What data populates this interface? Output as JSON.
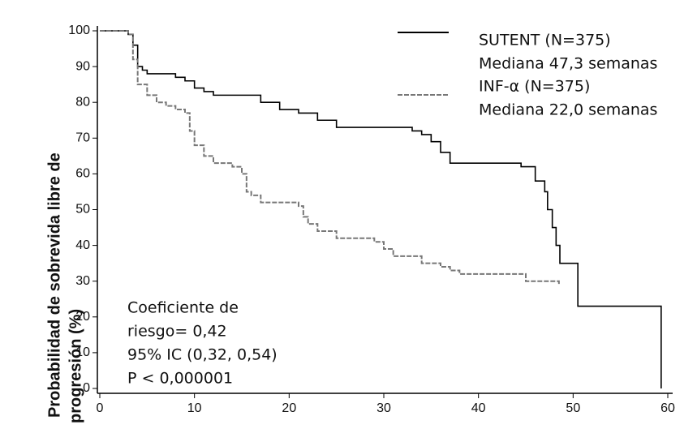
{
  "chart_data": {
    "type": "line",
    "step": "post",
    "ylabel": [
      "Probabilidad de sobrevida libre de",
      "progresión (%)"
    ],
    "series": [
      {
        "name": "SUTENT (N=375)",
        "median_label": "Mediana 47,3 semanas",
        "color": "#000000",
        "dash": false,
        "x": [
          0,
          2,
          3,
          3.5,
          4,
          4.5,
          5,
          8,
          9,
          10,
          11,
          12,
          17,
          19,
          21,
          23,
          25,
          32,
          33,
          34,
          35,
          36,
          37,
          44.5,
          46,
          47,
          47.3,
          47.8,
          48.2,
          48.6,
          50.5,
          59.3
        ],
        "values": [
          100,
          100,
          99,
          96,
          90,
          89,
          88,
          87,
          86,
          84,
          83,
          82,
          80,
          78,
          77,
          75,
          73,
          73,
          72,
          71,
          69,
          66,
          63,
          62,
          58,
          55,
          50,
          45,
          40,
          35,
          23,
          0
        ]
      },
      {
        "name": "INF-α (N=375)",
        "median_label": "Mediana 22,0 semanas",
        "color": "#777777",
        "dash": true,
        "x": [
          0,
          3,
          3.5,
          4,
          5,
          6,
          7,
          8,
          9,
          9.5,
          10,
          11,
          12,
          14,
          15,
          15.5,
          16,
          17,
          21,
          21.5,
          22,
          23,
          25,
          29,
          30,
          31,
          34,
          36,
          37,
          38,
          45,
          48.5
        ],
        "values": [
          100,
          99,
          92,
          85,
          82,
          80,
          79,
          78,
          77,
          72,
          68,
          65,
          63,
          62,
          60,
          55,
          54,
          52,
          51,
          48,
          46,
          44,
          42,
          41,
          39,
          37,
          35,
          34,
          33,
          32,
          30,
          29
        ]
      }
    ],
    "annotation": [
      "Coeficiente de",
      "riesgo= 0,42",
      "95% IC (0,32, 0,54)",
      "P < 0,000001"
    ],
    "xlim": [
      0,
      60
    ],
    "xticks": [
      0,
      10,
      20,
      30,
      40,
      50,
      60
    ],
    "ylim": [
      0,
      100
    ],
    "yticks": [
      0,
      10,
      20,
      30,
      40,
      50,
      60,
      70,
      80,
      90,
      100
    ]
  }
}
